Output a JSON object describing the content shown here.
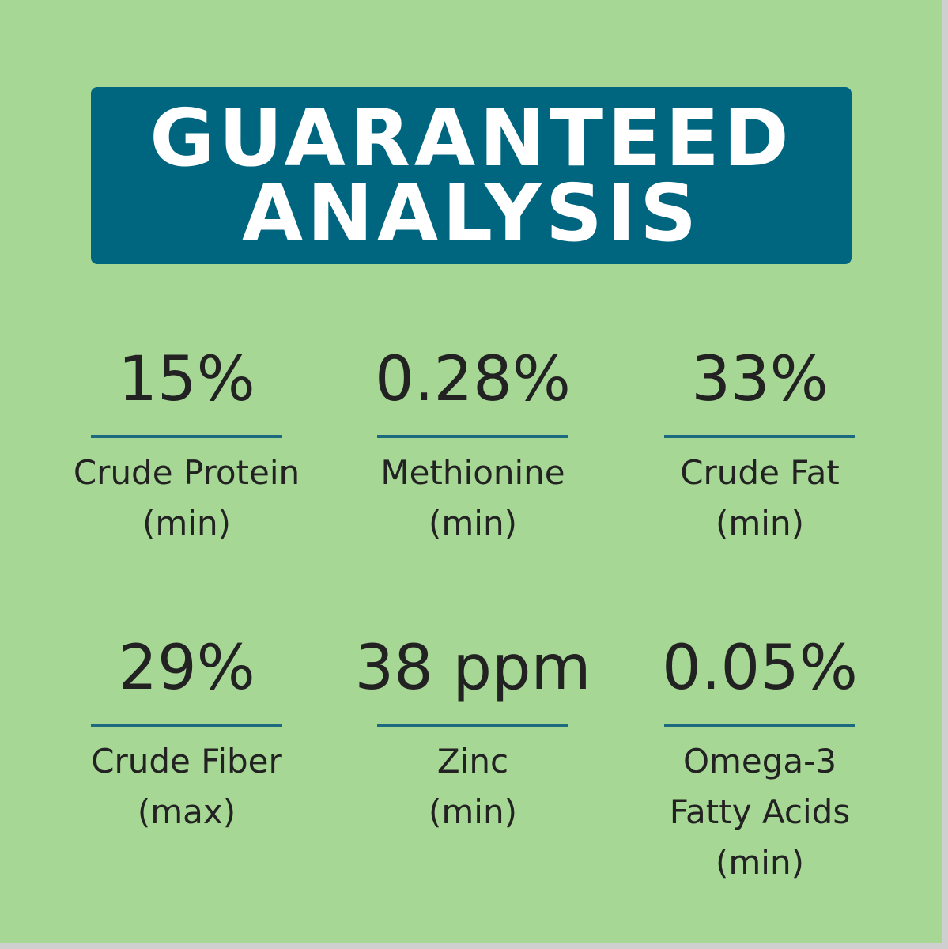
{
  "header": {
    "title": [
      "GUARANTEED",
      "ANALYSIS"
    ]
  },
  "items": [
    {
      "value": "15%",
      "label": [
        "Crude Protein",
        "(min)"
      ]
    },
    {
      "value": "0.28%",
      "label": [
        "Methionine",
        "(min)"
      ]
    },
    {
      "value": "33%",
      "label": [
        "Crude Fat",
        "(min)"
      ]
    },
    {
      "value": "29%",
      "label": [
        "Crude Fiber",
        "(max)"
      ]
    },
    {
      "value": "38 ppm",
      "label": [
        "Zinc",
        "(min)"
      ]
    },
    {
      "value": "0.05%",
      "label": [
        "Omega-3",
        "Fatty Acids",
        "(min)"
      ]
    }
  ]
}
